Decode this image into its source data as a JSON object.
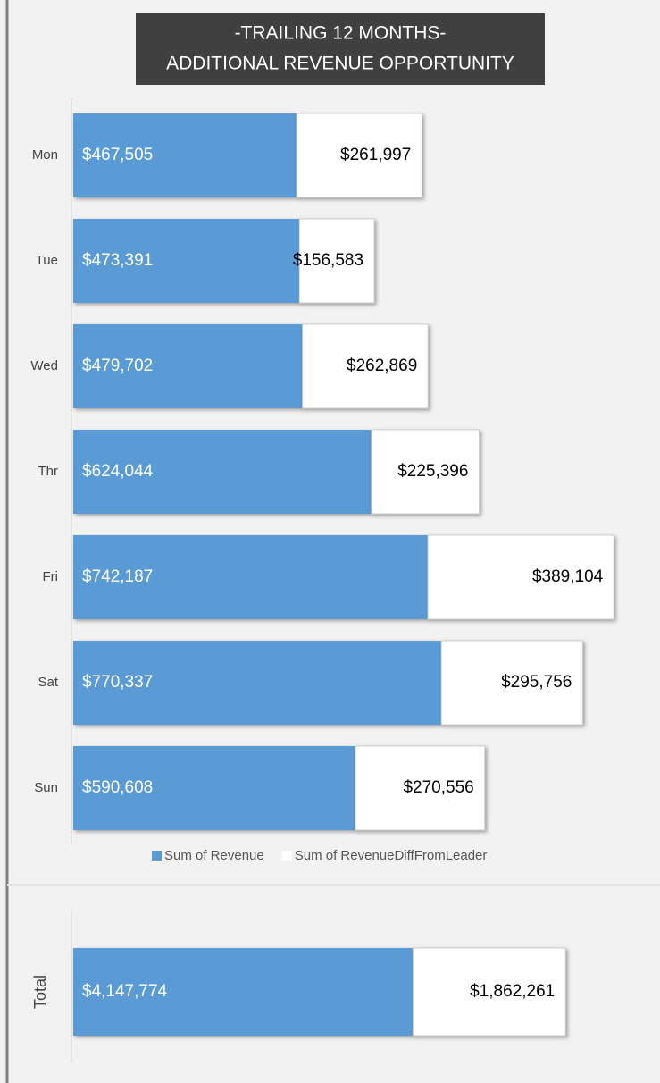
{
  "chart_data": [
    {
      "type": "bar",
      "orientation": "horizontal",
      "stacked": true,
      "title": [
        "-TRAILING 12 MONTHS-",
        "ADDITIONAL REVENUE OPPORTUNITY"
      ],
      "categories": [
        "Mon",
        "Tue",
        "Wed",
        "Thr",
        "Fri",
        "Sat",
        "Sun"
      ],
      "series": [
        {
          "name": "Sum of Revenue",
          "color": "#5b9bd5",
          "values": [
            467505,
            473391,
            479702,
            624044,
            742187,
            770337,
            590608
          ],
          "value_labels": [
            "$467,505",
            "$473,391",
            "$479,702",
            "$624,044",
            "$742,187",
            "$770,337",
            "$590,608"
          ]
        },
        {
          "name": "Sum of RevenueDiffFromLeader",
          "color": "#ffffff",
          "values": [
            261997,
            156583,
            262869,
            225396,
            389104,
            295756,
            270556
          ],
          "value_labels": [
            "$261,997",
            "$156,583",
            "$262,869",
            "$225,396",
            "$389,104",
            "$295,756",
            "$270,556"
          ]
        }
      ],
      "xlim": [
        0,
        1200000
      ],
      "legend": "bottom"
    },
    {
      "type": "bar",
      "orientation": "horizontal",
      "stacked": true,
      "categories": [
        "Total"
      ],
      "series": [
        {
          "color": "#5b9bd5",
          "values": [
            4147774
          ],
          "value_labels": [
            "$4,147,774"
          ]
        },
        {
          "color": "#ffffff",
          "values": [
            1862261
          ],
          "value_labels": [
            "$1,862,261"
          ]
        }
      ],
      "xlim": [
        0,
        7000000
      ]
    }
  ]
}
